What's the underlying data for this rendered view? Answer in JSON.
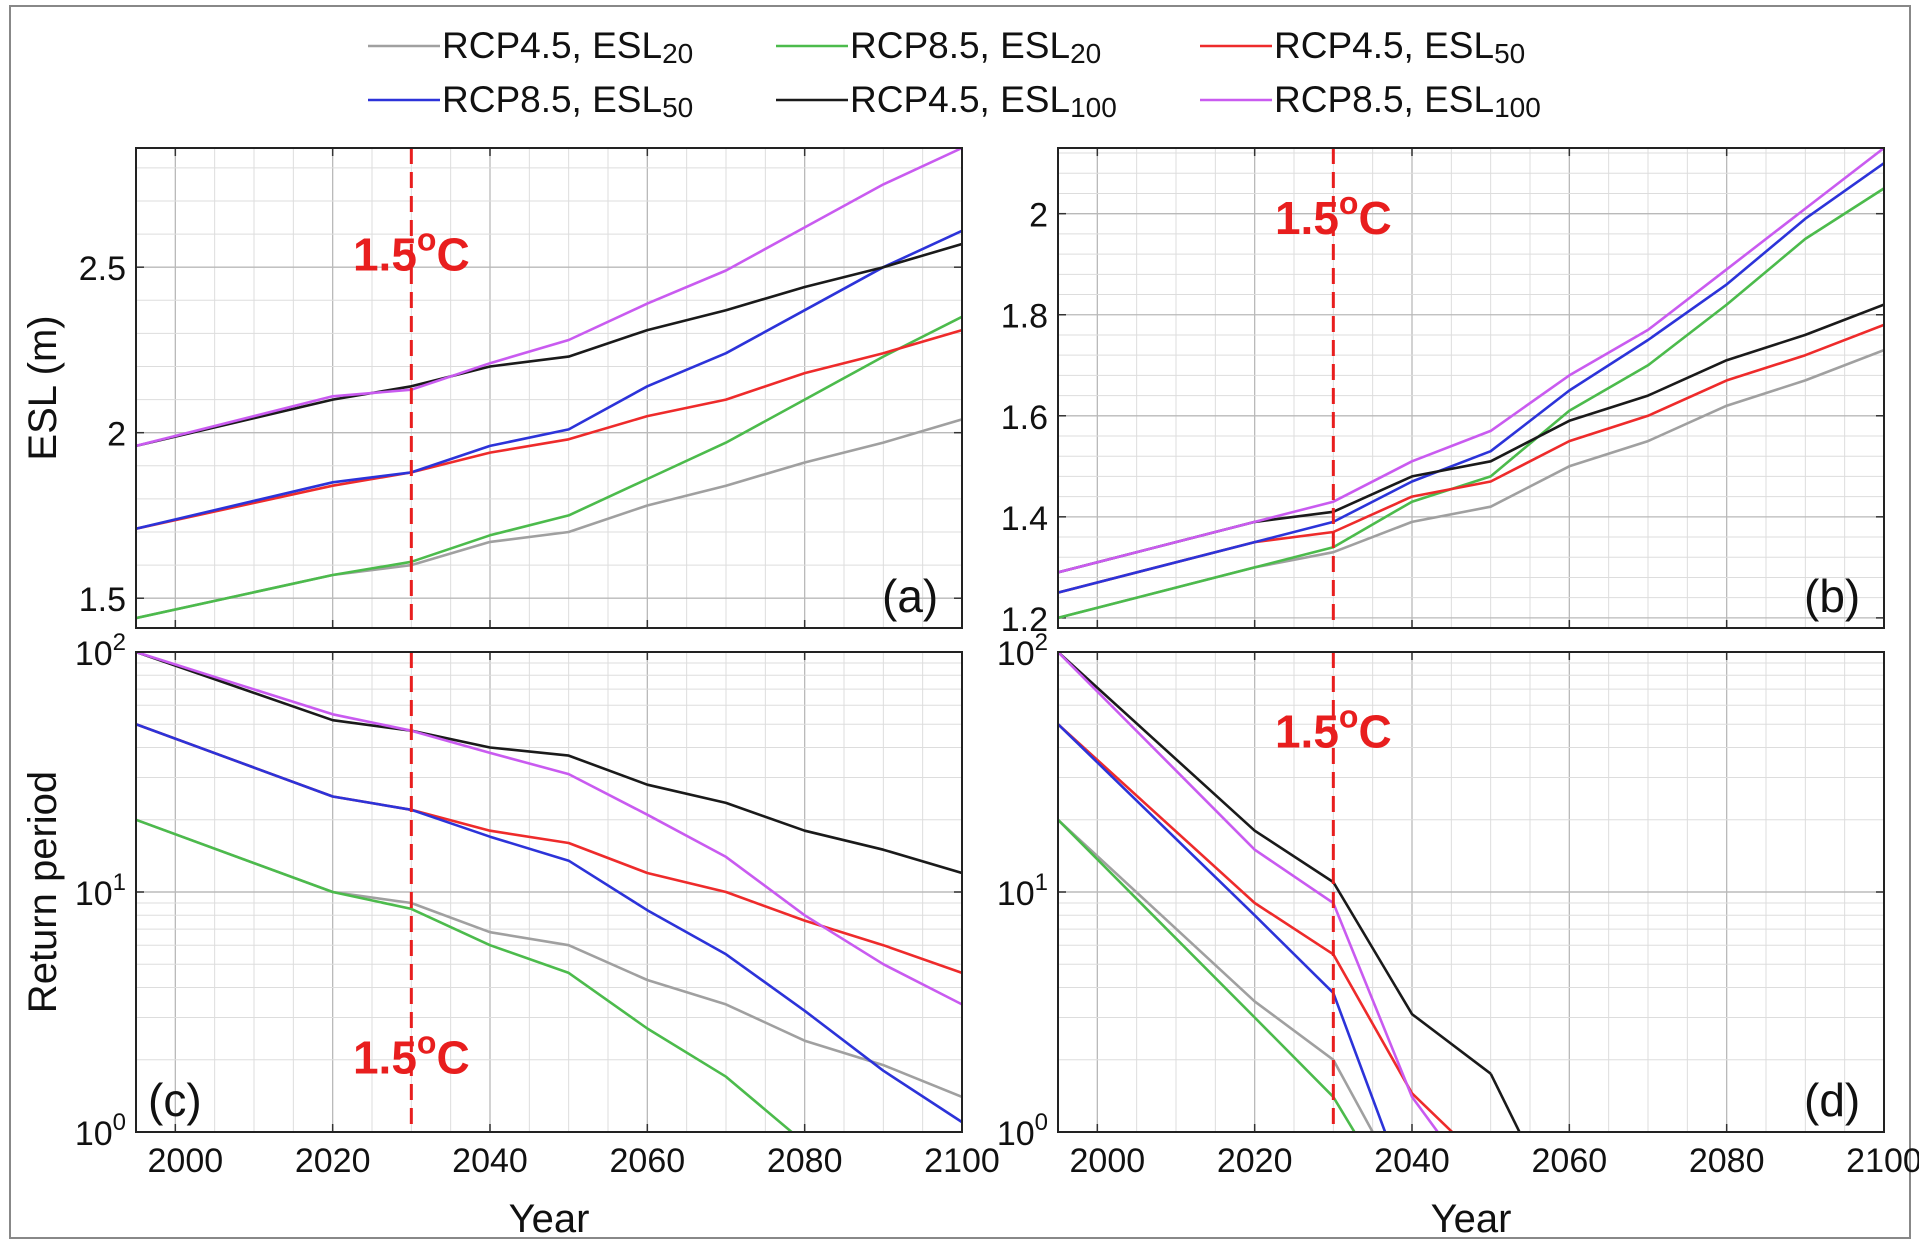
{
  "legend": {
    "placement": "top-center",
    "entries": [
      {
        "base": "RCP4.5, ESL",
        "sub": "20",
        "color": "#a0a0a0"
      },
      {
        "base": "RCP8.5, ESL",
        "sub": "20",
        "color": "#4cbb4c"
      },
      {
        "base": "RCP4.5, ESL",
        "sub": "50",
        "color": "#ee2b2b"
      },
      {
        "base": "RCP8.5, ESL",
        "sub": "50",
        "color": "#2c33d9"
      },
      {
        "base": "RCP4.5, ESL",
        "sub": "100",
        "color": "#1a1a1a"
      },
      {
        "base": "RCP8.5, ESL",
        "sub": "100",
        "color": "#c95bf0"
      }
    ]
  },
  "marker": {
    "text": "1.5",
    "sup": "o",
    "unit": "C",
    "year": 2030,
    "color": "#e81e1e"
  },
  "common": {
    "xlabel": "Year",
    "xticks": [
      "2000",
      "2020",
      "2040",
      "2060",
      "2080",
      "2100"
    ]
  },
  "chart_data": [
    {
      "type": "line",
      "panel": "(a)",
      "ylabel": "ESL (m)",
      "xlim": [
        1995,
        2100
      ],
      "ylim": [
        1.41,
        2.86
      ],
      "yscale": "linear",
      "yticks": [
        {
          "v": 1.5,
          "label": "1.5"
        },
        {
          "v": 2,
          "label": "2"
        },
        {
          "v": 2.5,
          "label": "2.5"
        }
      ],
      "grid": true,
      "show_xticks": false,
      "marker_label_y": 2.49,
      "x": [
        1995,
        2020,
        2030,
        2040,
        2050,
        2060,
        2070,
        2080,
        2090,
        2100
      ],
      "series": [
        {
          "values": [
            1.44,
            1.57,
            1.6,
            1.67,
            1.7,
            1.78,
            1.84,
            1.91,
            1.97,
            2.04
          ]
        },
        {
          "values": [
            1.44,
            1.57,
            1.61,
            1.69,
            1.75,
            1.86,
            1.97,
            2.1,
            2.23,
            2.35
          ]
        },
        {
          "values": [
            1.71,
            1.84,
            1.88,
            1.94,
            1.98,
            2.05,
            2.1,
            2.18,
            2.24,
            2.31
          ]
        },
        {
          "values": [
            1.71,
            1.85,
            1.88,
            1.96,
            2.01,
            2.14,
            2.24,
            2.37,
            2.5,
            2.61
          ]
        },
        {
          "values": [
            1.96,
            2.1,
            2.14,
            2.2,
            2.23,
            2.31,
            2.37,
            2.44,
            2.5,
            2.57
          ]
        },
        {
          "values": [
            1.96,
            2.11,
            2.13,
            2.21,
            2.28,
            2.39,
            2.49,
            2.62,
            2.75,
            2.86
          ]
        }
      ]
    },
    {
      "type": "line",
      "panel": "(b)",
      "ylabel": "",
      "xlim": [
        1995,
        2100
      ],
      "ylim": [
        1.18,
        2.13
      ],
      "yscale": "linear",
      "yticks": [
        {
          "v": 1.2,
          "label": "1.2"
        },
        {
          "v": 1.4,
          "label": "1.4"
        },
        {
          "v": 1.6,
          "label": "1.6"
        },
        {
          "v": 1.8,
          "label": "1.8"
        },
        {
          "v": 2,
          "label": "2"
        }
      ],
      "grid": true,
      "show_xticks": false,
      "marker_label_y": 1.96,
      "x": [
        1995,
        2020,
        2030,
        2040,
        2050,
        2060,
        2070,
        2080,
        2090,
        2100
      ],
      "series": [
        {
          "values": [
            1.2,
            1.3,
            1.33,
            1.39,
            1.42,
            1.5,
            1.55,
            1.62,
            1.67,
            1.73
          ]
        },
        {
          "values": [
            1.2,
            1.3,
            1.34,
            1.43,
            1.48,
            1.61,
            1.7,
            1.82,
            1.95,
            2.05
          ]
        },
        {
          "values": [
            1.25,
            1.35,
            1.37,
            1.44,
            1.47,
            1.55,
            1.6,
            1.67,
            1.72,
            1.78
          ]
        },
        {
          "values": [
            1.25,
            1.35,
            1.39,
            1.47,
            1.53,
            1.65,
            1.75,
            1.86,
            1.99,
            2.1
          ]
        },
        {
          "values": [
            1.29,
            1.39,
            1.41,
            1.48,
            1.51,
            1.59,
            1.64,
            1.71,
            1.76,
            1.82
          ]
        },
        {
          "values": [
            1.29,
            1.39,
            1.43,
            1.51,
            1.57,
            1.68,
            1.77,
            1.89,
            2.01,
            2.13
          ]
        }
      ]
    },
    {
      "type": "line",
      "panel": "(c)",
      "ylabel": "Return period",
      "xlim": [
        1995,
        2100
      ],
      "ylim": [
        1,
        100
      ],
      "yscale": "log",
      "yticks": [
        {
          "v": 1,
          "base": "10",
          "exp": "0"
        },
        {
          "v": 10,
          "base": "10",
          "exp": "1"
        },
        {
          "v": 100,
          "base": "10",
          "exp": "2"
        }
      ],
      "grid": true,
      "show_xticks": true,
      "marker_label_y": 1.75,
      "x": [
        1995,
        2020,
        2030,
        2040,
        2050,
        2060,
        2070,
        2080,
        2090,
        2100
      ],
      "series": [
        {
          "values": [
            20,
            10,
            9,
            6.8,
            6,
            4.3,
            3.4,
            2.4,
            1.9,
            1.4
          ]
        },
        {
          "values": [
            20,
            10,
            8.5,
            6,
            4.6,
            2.7,
            1.7,
            0.9,
            null,
            null
          ]
        },
        {
          "values": [
            50,
            25,
            22,
            18,
            16,
            12,
            10,
            7.6,
            6,
            4.6
          ]
        },
        {
          "values": [
            50,
            25,
            22,
            17,
            13.5,
            8.4,
            5.5,
            3.2,
            1.8,
            1.1
          ]
        },
        {
          "values": [
            100,
            52,
            47,
            40,
            37,
            28,
            23.5,
            18,
            15,
            12
          ]
        },
        {
          "values": [
            100,
            55,
            47,
            38,
            31,
            21,
            14,
            8,
            5,
            3.4
          ]
        }
      ]
    },
    {
      "type": "line",
      "panel": "(d)",
      "ylabel": "",
      "xlim": [
        1995,
        2100
      ],
      "ylim": [
        1,
        100
      ],
      "yscale": "log",
      "yticks": [
        {
          "v": 1,
          "base": "10",
          "exp": "0"
        },
        {
          "v": 10,
          "base": "10",
          "exp": "1"
        },
        {
          "v": 100,
          "base": "10",
          "exp": "2"
        }
      ],
      "grid": true,
      "show_xticks": true,
      "marker_label_y": 40,
      "x": [
        1995,
        2020,
        2030,
        2040,
        2050
      ],
      "series": [
        {
          "values": [
            20,
            3.5,
            2,
            0.5,
            null
          ]
        },
        {
          "values": [
            20,
            3,
            1.4,
            0.4,
            null
          ]
        },
        {
          "values": [
            50,
            9,
            5.5,
            1.45,
            0.7
          ]
        },
        {
          "values": [
            50,
            8,
            3.8,
            0.5,
            null
          ]
        },
        {
          "values": [
            100,
            18,
            11,
            3.1,
            1.75
          ]
        },
        {
          "values": [
            100,
            15,
            9,
            1.4,
            0.5
          ]
        }
      ],
      "tail": {
        "x": [
          2050,
          2054
        ],
        "values": [
          1.75,
          0.95
        ]
      }
    }
  ]
}
